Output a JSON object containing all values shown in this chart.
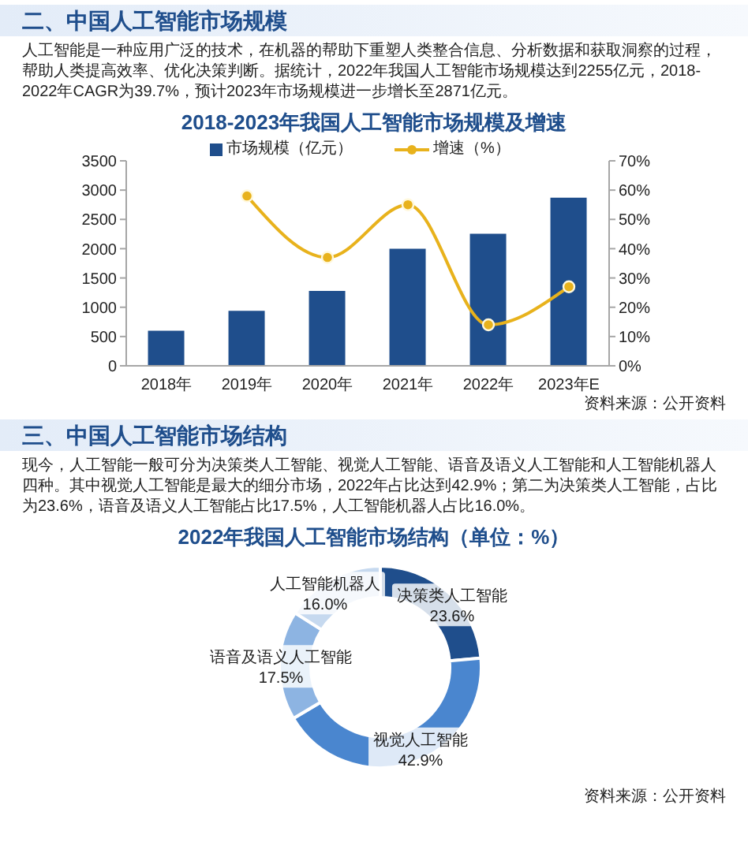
{
  "chart_data": [
    {
      "type": "bar",
      "title": "2018-2023年我国人工智能市场规模及增速",
      "annotations": [
        "二、中国人工智能市场规模",
        "人工智能是一种应用广泛的技术，在机器的帮助下重塑人类整合信息、分析数据和获取洞察的过程，帮助人类提高效率、优化决策判断。据统计，2022年我国人工智能市场规模达到2255亿元，2018-2022年CAGR为39.7%，预计2023年市场规模进一步增长至2871亿元。",
        "资料来源：公开资料"
      ],
      "categories": [
        "2018年",
        "2019年",
        "2020年",
        "2021年",
        "2022年",
        "2023年E"
      ],
      "series": [
        {
          "name": "市场规模（亿元）",
          "color": "#1f4e8c",
          "values": [
            600,
            940,
            1280,
            2000,
            2255,
            2871
          ]
        },
        {
          "name": "增速（%）",
          "type": "line",
          "axis": "y2",
          "color": "#e8b21c",
          "values": [
            null,
            58,
            37,
            55,
            14,
            27
          ]
        }
      ],
      "ylim": [
        0,
        3500
      ],
      "yticks": [
        0,
        500,
        1000,
        1500,
        2000,
        2500,
        3000,
        3500
      ],
      "y2lim": [
        0,
        70
      ],
      "y2ticks": [
        {
          "value": 0,
          "label": "0%"
        },
        {
          "value": 10,
          "label": "10%"
        },
        {
          "value": 20,
          "label": "20%"
        },
        {
          "value": 30,
          "label": "30%"
        },
        {
          "value": 40,
          "label": "40%"
        },
        {
          "value": 50,
          "label": "50%"
        },
        {
          "value": 60,
          "label": "60%"
        },
        {
          "value": 70,
          "label": "70%"
        }
      ],
      "legend": "top",
      "marker": "circle"
    },
    {
      "type": "donut",
      "title": "2022年我国人工智能市场结构（单位：%）",
      "annotations": [
        "三、中国人工智能市场结构",
        "现今，人工智能一般可分为决策类人工智能、视觉人工智能、语音及语义人工智能和人工智能机器人四种。其中视觉人工智能是最大的细分市场，2022年占比达到42.9%；第二为决策类人工智能，占比为23.6%，语音及语义人工智能占比17.5%，人工智能机器人占比16.0%。",
        "资料来源：公开资料"
      ],
      "categories": [
        "决策类人工智能",
        "视觉人工智能",
        "语音及语义人工智能",
        "人工智能机器人"
      ],
      "values": [
        23.6,
        42.9,
        17.5,
        16.0
      ],
      "colors": [
        "#1f4e8c",
        "#4a86cf",
        "#8db4e2",
        "#c6d9ef"
      ],
      "value_labels": [
        "23.6%",
        "42.9%",
        "17.5%",
        "16.0%"
      ]
    }
  ]
}
